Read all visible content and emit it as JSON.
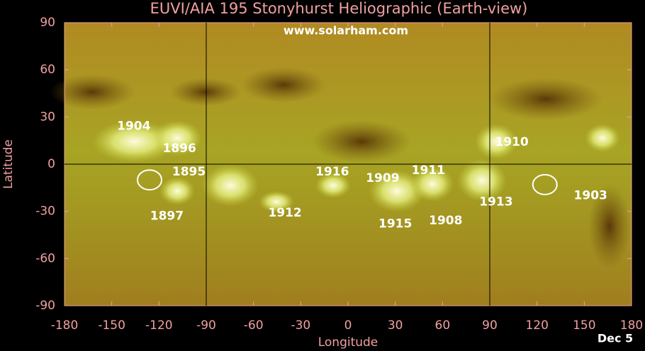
{
  "chart_data": {
    "type": "scatter",
    "title": "EUVI/AIA 195 Stonyhurst Heliographic (Earth-view)",
    "watermark": "www.solarham.com",
    "date": "Dec 5",
    "x_label": "Longitude",
    "y_label": "Latitude",
    "xlim": [
      -180,
      180
    ],
    "ylim": [
      -90,
      90
    ],
    "xticks": [
      -180,
      -150,
      -120,
      -90,
      -60,
      -30,
      0,
      30,
      60,
      90,
      120,
      150,
      180
    ],
    "yticks": [
      -90,
      -60,
      -30,
      0,
      30,
      60,
      90
    ],
    "guide_lines_x": [
      -90,
      90
    ],
    "guide_lines_y": [
      0
    ],
    "regions": {
      "labels": [
        "1904",
        "1896",
        "1895",
        "1897",
        "1912",
        "1916",
        "1909",
        "1911",
        "1915",
        "1908",
        "1910",
        "1913",
        "1903"
      ],
      "x": [
        -136,
        -107,
        -101,
        -115,
        -40,
        -10,
        22,
        51,
        30,
        62,
        104,
        94,
        154
      ],
      "y": [
        24,
        10,
        -5,
        -33,
        -31,
        -5,
        -9,
        -4,
        -38,
        -36,
        14,
        -24,
        -20
      ]
    },
    "circles": {
      "x": [
        -126,
        125
      ],
      "y": [
        -10,
        -13
      ]
    }
  }
}
